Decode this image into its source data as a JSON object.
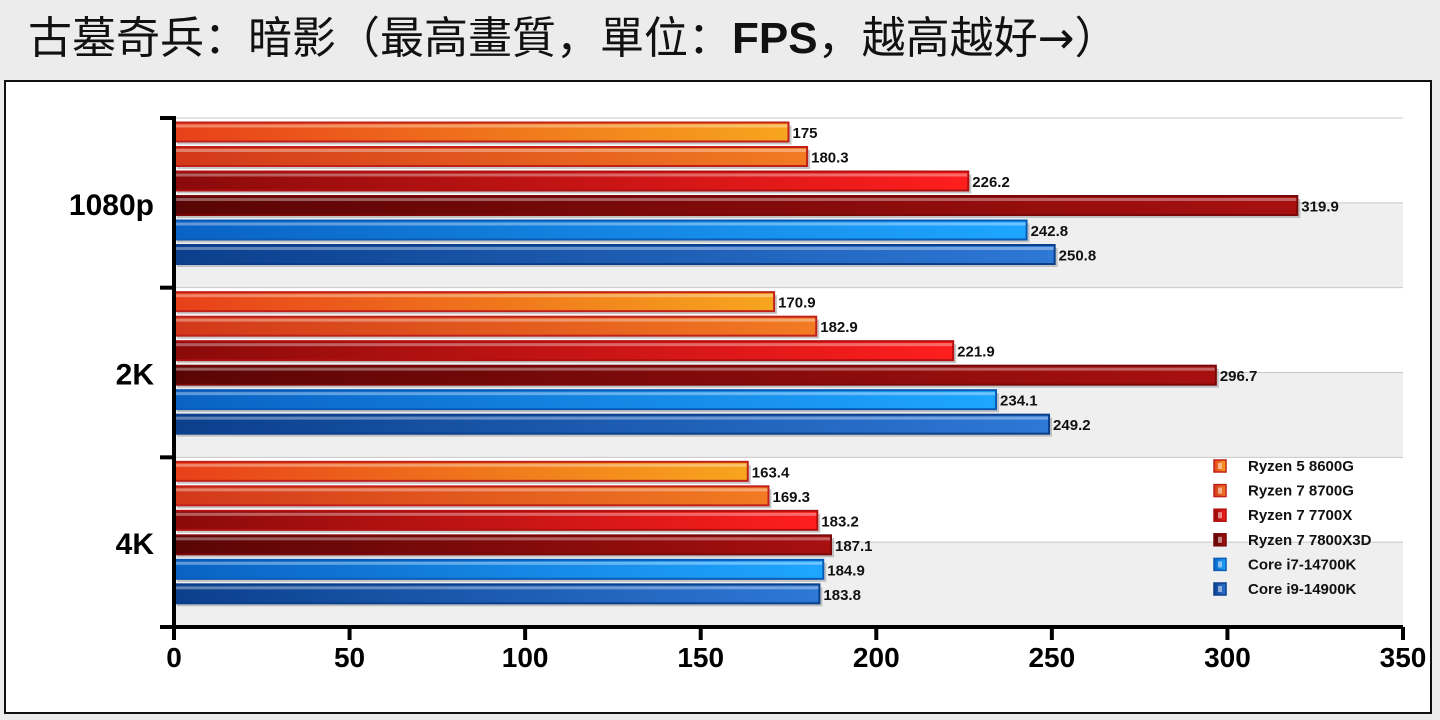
{
  "title": {
    "prefix": "古墓奇兵：暗影（最高畫質，單位：",
    "unit": "FPS",
    "suffix": "，越高越好→）"
  },
  "chart_data": {
    "type": "bar",
    "orientation": "horizontal",
    "title": "古墓奇兵：暗影（最高畫質，單位：FPS，越高越好→）",
    "categories": [
      "1080p",
      "2K",
      "4K"
    ],
    "series": [
      {
        "name": "Ryzen 5 8600G",
        "values": [
          175,
          170.9,
          163.4
        ],
        "color_start": "#e8401a",
        "color_end": "#f7a51e"
      },
      {
        "name": "Ryzen 7 8700G",
        "values": [
          180.3,
          182.9,
          169.3
        ],
        "color_start": "#d2381a",
        "color_end": "#f27b22"
      },
      {
        "name": "Ryzen 7 7700X",
        "values": [
          226.2,
          221.9,
          183.2
        ],
        "color_start": "#8a0a0a",
        "color_end": "#ff1e1e"
      },
      {
        "name": "Ryzen 7 7800X3D",
        "values": [
          319.9,
          296.7,
          187.1
        ],
        "color_start": "#5a0505",
        "color_end": "#a81010"
      },
      {
        "name": "Core i7-14700K",
        "values": [
          242.8,
          234.1,
          184.9
        ],
        "color_start": "#0a62c4",
        "color_end": "#1ea6ff"
      },
      {
        "name": "Core i9-14900K",
        "values": [
          250.8,
          249.2,
          183.8
        ],
        "color_start": "#0b3f8c",
        "color_end": "#2e78d6"
      }
    ],
    "xlim": [
      0,
      350
    ],
    "xticks": [
      0,
      50,
      100,
      150,
      200,
      250,
      300,
      350
    ],
    "grid": true,
    "legend_position": "bottom-right",
    "border_colors": [
      "#c0201a",
      "#c0201a",
      "#b01010",
      "#7a0808",
      "#0a5ab8",
      "#0a3f8c"
    ]
  }
}
